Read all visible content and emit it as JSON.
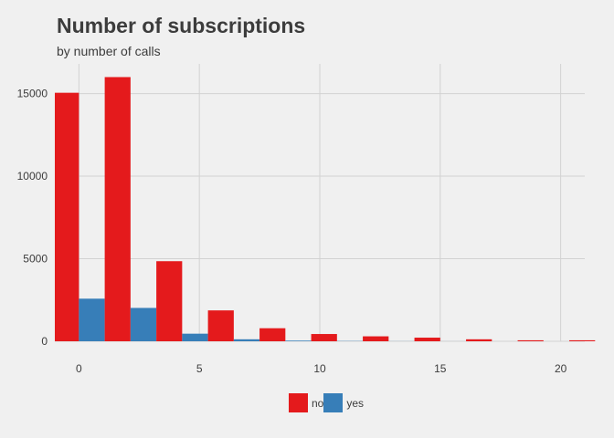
{
  "chart_data": {
    "type": "bar",
    "title": "Number of subscriptions",
    "subtitle": "by number of calls",
    "xlabel": "",
    "ylabel": "",
    "x_bins": [
      {
        "center": 0,
        "no": 15050,
        "yes": 2580
      },
      {
        "center": 2.143,
        "no": 16000,
        "yes": 2020
      },
      {
        "center": 4.286,
        "no": 4850,
        "yes": 460
      },
      {
        "center": 6.429,
        "no": 1870,
        "yes": 120
      },
      {
        "center": 8.571,
        "no": 790,
        "yes": 40
      },
      {
        "center": 10.714,
        "no": 440,
        "yes": 15
      },
      {
        "center": 12.857,
        "no": 300,
        "yes": 5
      },
      {
        "center": 15,
        "no": 220,
        "yes": 2
      },
      {
        "center": 17.143,
        "no": 120,
        "yes": 0
      },
      {
        "center": 19.286,
        "no": 60,
        "yes": 0
      },
      {
        "center": 21.429,
        "no": 60,
        "yes": 0
      }
    ],
    "series": [
      {
        "name": "no",
        "color": "#e41a1c"
      },
      {
        "name": "yes",
        "color": "#377eb8"
      }
    ],
    "x_ticks": [
      "0",
      "5",
      "10",
      "15",
      "20"
    ],
    "y_ticks": [
      "0",
      "5000",
      "10000",
      "15000"
    ],
    "xlim": [
      -1,
      21
    ],
    "ylim": [
      0,
      16800
    ],
    "grid": true,
    "legend_position": "bottom"
  }
}
